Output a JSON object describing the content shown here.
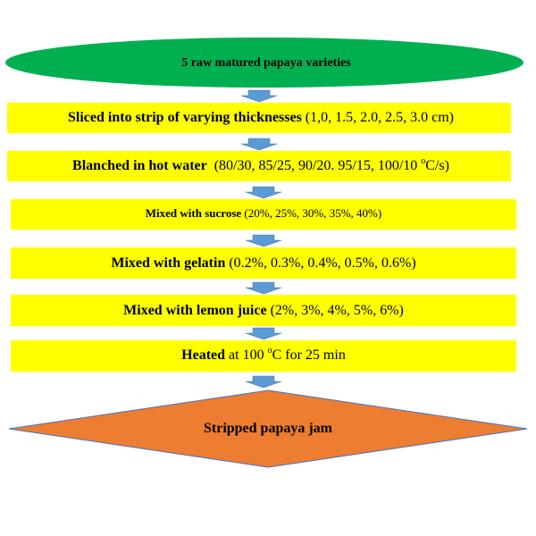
{
  "nodes": [
    {
      "parts": [
        {
          "text": "5 raw matured papaya varieties",
          "bold": true
        }
      ]
    },
    {
      "parts": [
        {
          "text": "Sliced into strip of varying thicknesses",
          "bold": true
        },
        {
          "text": " (1,0, 1.5, 2.0, 2.5, 3.0 cm)"
        }
      ]
    },
    {
      "parts": [
        {
          "text": "Blanched in hot water",
          "bold": true
        },
        {
          "text": "  (80/30, 85/25, 90/20. 95/15, 100/10 "
        },
        {
          "text": "o",
          "superscript": true
        },
        {
          "text": "C/s)"
        }
      ]
    },
    {
      "parts": [
        {
          "text": "Mixed with sucrose",
          "bold": true
        },
        {
          "text": " (20%, 25%, 30%, 35%, 40%)"
        }
      ]
    },
    {
      "parts": [
        {
          "text": "Mixed with gelatin",
          "bold": true
        },
        {
          "text": " (0.2%, 0.3%, 0.4%, 0.5%, 0.6%)"
        }
      ]
    },
    {
      "parts": [
        {
          "text": "Mixed with lemon juice",
          "bold": true
        },
        {
          "text": " (2%, 3%, 4%, 5%, 6%)"
        }
      ]
    },
    {
      "parts": [
        {
          "text": "Heated",
          "bold": true
        },
        {
          "text": " at 100 "
        },
        {
          "text": "o",
          "superscript": true
        },
        {
          "text": "C for 25 min"
        }
      ]
    },
    {
      "parts": [
        {
          "text": "Stripped papaya jam",
          "bold": true
        }
      ]
    }
  ]
}
